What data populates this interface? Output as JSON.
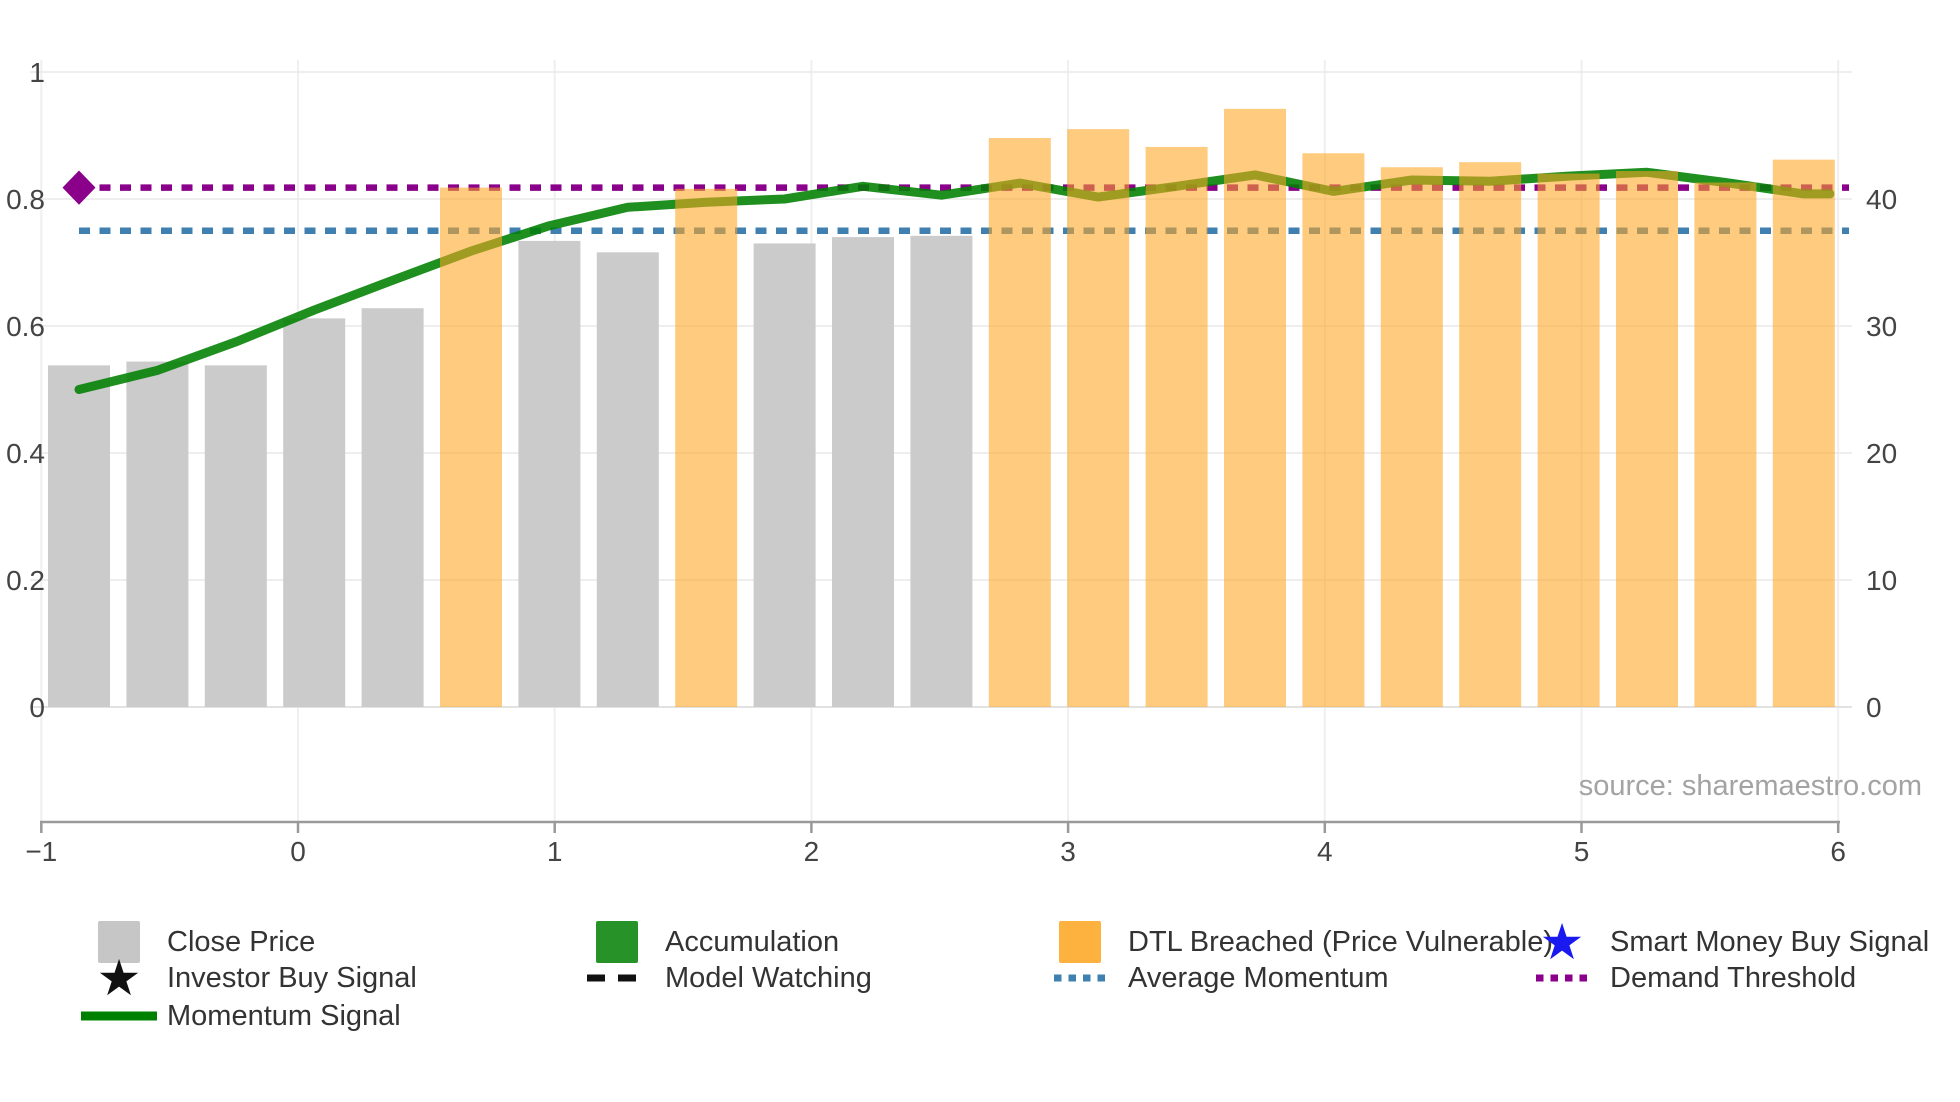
{
  "source_note": "source: sharemaestro.com",
  "colors": {
    "close_price_bar": "#cbcbcb",
    "dtl_breached_bar": "rgba(253,166,35,0.58)",
    "dtl_breached_legend": "rgba(253,166,35,0.88)",
    "close_price_legend": "#c6c6c6",
    "momentum_line": "#008000",
    "accumulation": "#279227",
    "average_momentum": "#4080b0",
    "demand_threshold": "#8b008b",
    "smart_money_star": "#1a1af0",
    "investor_star": "#111111",
    "model_watching": "#111111",
    "axis_text": "#444444",
    "axis_line": "#999999",
    "grid_line": "#e9e9e9",
    "zero_line": "#e2e2e2",
    "source_text": "#a3a3a3",
    "legend_text": "#333333"
  },
  "chart_data": {
    "type": "bar+line",
    "title": "",
    "x_tick_labels": [
      "−1",
      "0",
      "1",
      "2",
      "3",
      "4",
      "5",
      "6"
    ],
    "x_tick_values": [
      -1,
      0,
      1,
      2,
      3,
      4,
      5,
      6
    ],
    "left_axis_tick_labels": [
      "0",
      "0.2",
      "0.4",
      "0.6",
      "0.8",
      "1"
    ],
    "left_axis_tick_values": [
      0,
      0.2,
      0.4,
      0.6,
      0.8,
      1
    ],
    "right_axis_tick_labels": [
      "0",
      "10",
      "20",
      "30",
      "40"
    ],
    "right_axis_tick_values": [
      0,
      10,
      20,
      30,
      40
    ],
    "grid": true,
    "legend_position": "bottom",
    "bars": {
      "name_normal": "Close Price",
      "name_breached": "DTL Breached (Price Vulnerable)",
      "axis": "right",
      "values": [
        26.9,
        27.2,
        26.9,
        30.6,
        31.4,
        40.9,
        36.7,
        35.8,
        40.8,
        36.5,
        37.0,
        37.1,
        44.8,
        45.5,
        44.1,
        47.1,
        43.6,
        42.5,
        42.9,
        42.0,
        42.2,
        41.3,
        43.1
      ],
      "dtl_breached": [
        false,
        false,
        false,
        false,
        false,
        true,
        false,
        false,
        true,
        false,
        false,
        false,
        true,
        true,
        true,
        true,
        true,
        true,
        true,
        true,
        true,
        true,
        true
      ]
    },
    "momentum_signal": {
      "name": "Momentum Signal",
      "axis": "left",
      "values": [
        0.5,
        0.53,
        0.575,
        0.625,
        0.672,
        0.718,
        0.758,
        0.787,
        0.795,
        0.8,
        0.82,
        0.806,
        0.825,
        0.803,
        0.82,
        0.838,
        0.812,
        0.83,
        0.828,
        0.836,
        0.842,
        0.826,
        0.808
      ]
    },
    "average_momentum": {
      "name": "Average Momentum",
      "value": 0.75,
      "style": "dotted"
    },
    "demand_threshold": {
      "name": "Demand Threshold",
      "value": 0.818,
      "style": "dotted",
      "start_marker": "diamond"
    }
  },
  "legend": {
    "items": [
      {
        "label": "Close Price",
        "marker": "square",
        "color_key": "close_price_legend"
      },
      {
        "label": "Accumulation",
        "marker": "square",
        "color_key": "accumulation"
      },
      {
        "label": "DTL Breached (Price Vulnerable)",
        "marker": "square",
        "color_key": "dtl_breached_legend"
      },
      {
        "label": "Smart Money Buy Signal",
        "marker": "star",
        "color_key": "smart_money_star"
      },
      {
        "label": "Investor Buy Signal",
        "marker": "star",
        "color_key": "investor_star"
      },
      {
        "label": "Model Watching",
        "marker": "dash",
        "color_key": "model_watching"
      },
      {
        "label": "Average Momentum",
        "marker": "dotted",
        "color_key": "average_momentum"
      },
      {
        "label": "Demand Threshold",
        "marker": "dotted",
        "color_key": "demand_threshold"
      },
      {
        "label": "Momentum Signal",
        "marker": "line",
        "color_key": "momentum_line"
      }
    ]
  }
}
